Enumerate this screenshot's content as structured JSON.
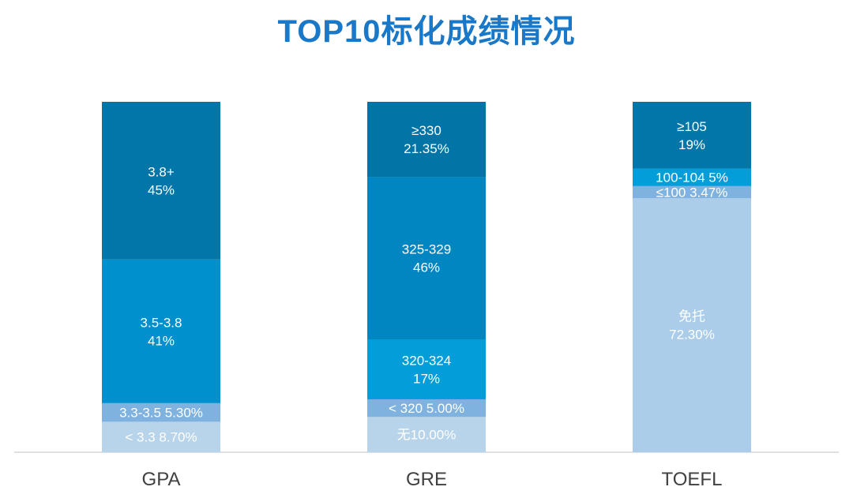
{
  "title": "TOP10标化成绩情况",
  "chart_data": {
    "type": "bar",
    "stacked": true,
    "ylim": [
      0,
      100
    ],
    "grid": false,
    "categories": [
      "GPA",
      "GRE",
      "TOEFL"
    ],
    "stacks": [
      {
        "category": "GPA",
        "segments": [
          {
            "lines": [
              "< 3.3 8.70%"
            ],
            "value": 8.7,
            "color": "#b8d4ea"
          },
          {
            "lines": [
              "3.3-3.5 5.30%"
            ],
            "value": 5.3,
            "color": "#7fb2df"
          },
          {
            "lines": [
              "3.5-3.8",
              "41%"
            ],
            "value": 41,
            "color": "#0190ce"
          },
          {
            "lines": [
              "3.8+",
              "45%"
            ],
            "value": 45,
            "color": "#0276a8"
          }
        ]
      },
      {
        "category": "GRE",
        "segments": [
          {
            "lines": [
              "无10.00%"
            ],
            "value": 10,
            "color": "#b8d4ea"
          },
          {
            "lines": [
              "< 320 5.00%"
            ],
            "value": 5,
            "color": "#7fb2df"
          },
          {
            "lines": [
              "320-324",
              "17%"
            ],
            "value": 17,
            "color": "#039ed9"
          },
          {
            "lines": [
              "325-329",
              "46%"
            ],
            "value": 46,
            "color": "#0186c2"
          },
          {
            "lines": [
              "≥330",
              "21.35%"
            ],
            "value": 21.35,
            "color": "#0274a6"
          }
        ]
      },
      {
        "category": "TOEFL",
        "segments": [
          {
            "lines": [
              "免托",
              "72.30%"
            ],
            "value": 72.3,
            "color": "#abcde9"
          },
          {
            "lines": [
              "≤100 3.47%"
            ],
            "value": 3.47,
            "color": "#7fb2df"
          },
          {
            "lines": [
              "100-104 5%"
            ],
            "value": 5,
            "color": "#039ed9"
          },
          {
            "lines": [
              "≥105",
              "19%"
            ],
            "value": 19,
            "color": "#0276a8"
          }
        ]
      }
    ]
  }
}
